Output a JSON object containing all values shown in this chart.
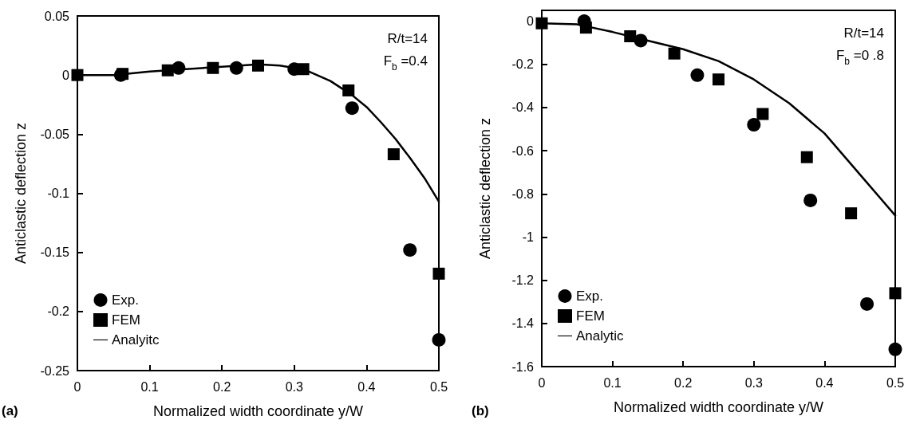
{
  "chart_data": [
    {
      "type": "scatter",
      "xlabel": "Normalized width coordinate y/W",
      "ylabel": "Anticlastic deflection z",
      "xlim": [
        0,
        0.5
      ],
      "xticks": [
        0,
        0.1,
        0.2,
        0.3,
        0.4,
        0.5
      ],
      "ylim": [
        -0.25,
        0.05
      ],
      "yticks": [
        -0.25,
        -0.2,
        -0.15,
        -0.1,
        -0.05,
        0,
        0.05
      ],
      "grid": false,
      "legend": "bottom left",
      "annotations": [
        "R/t=14",
        "F$_{b}$ =0.4",
        "(a)"
      ],
      "series": [
        {
          "name": "Exp.",
          "marker": "circle",
          "color": "#000000",
          "x": [
            0.06,
            0.14,
            0.22,
            0.3,
            0.38,
            0.46,
            0.5
          ],
          "values": [
            0,
            0.006,
            0.006,
            0.005,
            -0.028,
            -0.148,
            -0.224
          ]
        },
        {
          "name": "FEM",
          "marker": "square",
          "color": "#000000",
          "x": [
            0,
            0.0625,
            0.125,
            0.1875,
            0.25,
            0.3125,
            0.375,
            0.4375,
            0.5
          ],
          "values": [
            0,
            0.001,
            0.004,
            0.006,
            0.008,
            0.005,
            -0.013,
            -0.067,
            -0.168
          ]
        },
        {
          "name": "Analyitc",
          "type": "line",
          "marker": "none",
          "line_style": "solid",
          "color": "#000000",
          "x": [
            0,
            0.05,
            0.1,
            0.15,
            0.2,
            0.25,
            0.28,
            0.3,
            0.32,
            0.35,
            0.38,
            0.4,
            0.42,
            0.44,
            0.46,
            0.48,
            0.5
          ],
          "values": [
            0,
            0,
            0.003,
            0.005,
            0.007,
            0.009,
            0.008,
            0.006,
            0.003,
            -0.005,
            -0.017,
            -0.027,
            -0.04,
            -0.054,
            -0.07,
            -0.087,
            -0.107
          ]
        }
      ]
    },
    {
      "type": "scatter",
      "xlabel": "Normalized width coordinate y/W",
      "ylabel": "Anticlastic deflection z",
      "xlim": [
        0,
        0.5
      ],
      "xticks": [
        0,
        0.1,
        0.2,
        0.3,
        0.4,
        0.5
      ],
      "ylim": [
        -1.6,
        0.05
      ],
      "yticks": [
        -1.6,
        -1.4,
        -1.2,
        -1,
        -0.8,
        -0.6,
        -0.4,
        -0.2,
        0
      ],
      "grid": false,
      "legend": "bottom left",
      "annotations": [
        "R/t=14",
        "F$_{b}$ =0 .8",
        "(b)"
      ],
      "series": [
        {
          "name": "Exp.",
          "marker": "circle",
          "color": "#000000",
          "x": [
            0.06,
            0.14,
            0.22,
            0.3,
            0.38,
            0.46,
            0.5
          ],
          "values": [
            0,
            -0.09,
            -0.25,
            -0.48,
            -0.83,
            -1.31,
            -1.52
          ]
        },
        {
          "name": "FEM",
          "marker": "square",
          "color": "#000000",
          "x": [
            0,
            0.0625,
            0.125,
            0.1875,
            0.25,
            0.3125,
            0.375,
            0.4375,
            0.5
          ],
          "values": [
            -0.01,
            -0.03,
            -0.07,
            -0.15,
            -0.27,
            -0.43,
            -0.63,
            -0.89,
            -1.26
          ]
        },
        {
          "name": "Analytic",
          "type": "line",
          "marker": "none",
          "line_style": "solid",
          "color": "#000000",
          "x": [
            0,
            0.05,
            0.1,
            0.15,
            0.2,
            0.25,
            0.3,
            0.35,
            0.4,
            0.45,
            0.5
          ],
          "values": [
            -0.01,
            -0.015,
            -0.05,
            -0.09,
            -0.13,
            -0.185,
            -0.27,
            -0.38,
            -0.52,
            -0.71,
            -0.9
          ]
        }
      ]
    }
  ]
}
